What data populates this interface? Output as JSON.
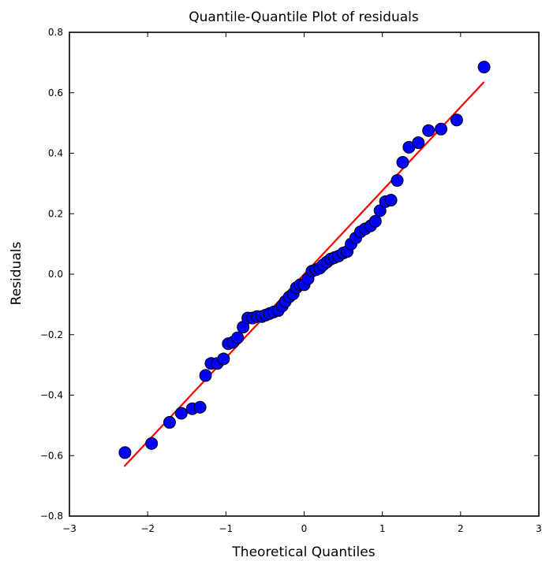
{
  "chart_data": {
    "type": "scatter",
    "title": "Quantile-Quantile Plot of residuals",
    "xlabel": "Theoretical Quantiles",
    "ylabel": "Residuals",
    "xlim": [
      -3,
      3
    ],
    "ylim": [
      -0.8,
      0.8
    ],
    "x_ticks": [
      -3,
      -2,
      -1,
      0,
      1,
      2,
      3
    ],
    "x_tick_labels": [
      "−3",
      "−2",
      "−1",
      "0",
      "1",
      "2",
      "3"
    ],
    "y_ticks": [
      -0.8,
      -0.6,
      -0.4,
      -0.2,
      0.0,
      0.2,
      0.4,
      0.6,
      0.8
    ],
    "y_tick_labels": [
      "−0.8",
      "−0.6",
      "−0.4",
      "−0.2",
      "0.0",
      "0.2",
      "0.4",
      "0.6",
      "0.8"
    ],
    "grid": false,
    "legend": "none",
    "colors": {
      "marker_fill": "#0000ff",
      "marker_edge": "#000000",
      "line": "#ff0000",
      "axes": "#000000"
    },
    "series": [
      {
        "kind": "markers",
        "x": [
          -2.29,
          -1.95,
          -1.72,
          -1.57,
          -1.43,
          -1.33,
          -1.26,
          -1.19,
          -1.11,
          -1.03,
          -0.97,
          -0.91,
          -0.85,
          -0.78,
          -0.72,
          -0.66,
          -0.6,
          -0.54,
          -0.49,
          -0.44,
          -0.39,
          -0.33,
          -0.28,
          -0.24,
          -0.19,
          -0.14,
          -0.1,
          -0.05,
          0.0,
          0.05,
          0.1,
          0.15,
          0.2,
          0.24,
          0.29,
          0.34,
          0.39,
          0.44,
          0.5,
          0.55,
          0.6,
          0.66,
          0.72,
          0.78,
          0.85,
          0.91,
          0.97,
          1.04,
          1.11,
          1.19,
          1.26,
          1.34,
          1.46,
          1.59,
          1.75,
          1.95,
          2.3
        ],
        "y": [
          -0.59,
          -0.56,
          -0.49,
          -0.46,
          -0.445,
          -0.44,
          -0.335,
          -0.295,
          -0.295,
          -0.28,
          -0.23,
          -0.225,
          -0.21,
          -0.175,
          -0.145,
          -0.145,
          -0.14,
          -0.14,
          -0.135,
          -0.13,
          -0.125,
          -0.12,
          -0.105,
          -0.09,
          -0.075,
          -0.065,
          -0.045,
          -0.035,
          -0.035,
          -0.015,
          0.01,
          0.015,
          0.02,
          0.03,
          0.04,
          0.05,
          0.055,
          0.06,
          0.07,
          0.075,
          0.1,
          0.12,
          0.14,
          0.15,
          0.16,
          0.175,
          0.21,
          0.24,
          0.245,
          0.31,
          0.37,
          0.42,
          0.435,
          0.475,
          0.48,
          0.51,
          0.685
        ]
      },
      {
        "kind": "reference-line",
        "x": [
          -2.3,
          2.3
        ],
        "y": [
          -0.636,
          0.636
        ]
      }
    ]
  }
}
